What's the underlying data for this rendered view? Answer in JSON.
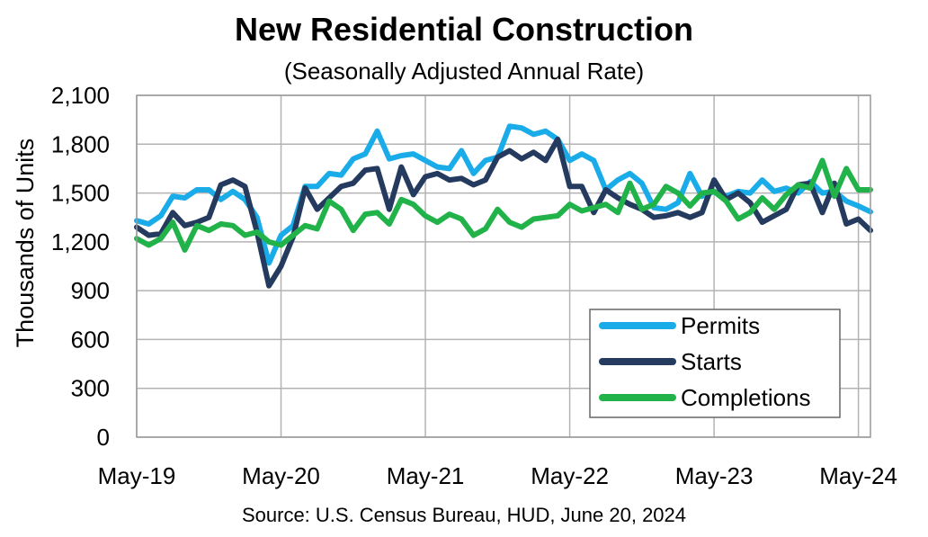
{
  "chart_data": {
    "type": "line",
    "title": "New Residential Construction",
    "subtitle": "(Seasonally Adjusted Annual Rate)",
    "source": "Source:  U.S. Census Bureau, HUD, June 20, 2024",
    "ylabel": "Thousands of Units",
    "xlabel": "",
    "ylim": [
      0,
      2100
    ],
    "yticks": [
      "0",
      "300",
      "600",
      "900",
      "1,200",
      "1,500",
      "1,800",
      "2,100"
    ],
    "yticks_values": [
      0,
      300,
      600,
      900,
      1200,
      1500,
      1800,
      2100
    ],
    "xticks": [
      "May-19",
      "May-20",
      "May-21",
      "May-22",
      "May-23",
      "May-24"
    ],
    "xticks_index": [
      0,
      12,
      24,
      36,
      48,
      60
    ],
    "grid": true,
    "legend_position": "bottom-right",
    "series": [
      {
        "name": "Permits",
        "color": "#1aace8",
        "values": [
          1330,
          1310,
          1360,
          1480,
          1470,
          1520,
          1520,
          1460,
          1510,
          1460,
          1350,
          1070,
          1240,
          1300,
          1540,
          1540,
          1620,
          1610,
          1710,
          1740,
          1880,
          1710,
          1730,
          1740,
          1700,
          1660,
          1650,
          1760,
          1620,
          1700,
          1720,
          1910,
          1900,
          1860,
          1880,
          1830,
          1700,
          1740,
          1700,
          1520,
          1580,
          1620,
          1560,
          1410,
          1400,
          1440,
          1620,
          1480,
          1510,
          1480,
          1510,
          1500,
          1580,
          1510,
          1530,
          1500,
          1570,
          1500,
          1510,
          1450,
          1420,
          1385
        ]
      },
      {
        "name": "Starts",
        "color": "#243a5e",
        "values": [
          1290,
          1240,
          1250,
          1380,
          1300,
          1320,
          1350,
          1550,
          1580,
          1540,
          1260,
          930,
          1050,
          1230,
          1530,
          1400,
          1470,
          1540,
          1560,
          1640,
          1650,
          1400,
          1660,
          1490,
          1600,
          1620,
          1580,
          1590,
          1550,
          1580,
          1720,
          1760,
          1710,
          1750,
          1700,
          1830,
          1540,
          1540,
          1380,
          1520,
          1470,
          1430,
          1400,
          1350,
          1360,
          1380,
          1350,
          1380,
          1580,
          1460,
          1500,
          1440,
          1320,
          1360,
          1400,
          1550,
          1560,
          1380,
          1560,
          1310,
          1340,
          1270
        ]
      },
      {
        "name": "Completions",
        "color": "#21b34a",
        "values": [
          1220,
          1180,
          1220,
          1320,
          1150,
          1300,
          1270,
          1310,
          1300,
          1240,
          1260,
          1200,
          1180,
          1240,
          1300,
          1280,
          1450,
          1400,
          1270,
          1370,
          1380,
          1310,
          1460,
          1430,
          1360,
          1320,
          1370,
          1340,
          1240,
          1280,
          1400,
          1320,
          1290,
          1340,
          1350,
          1360,
          1430,
          1390,
          1410,
          1430,
          1380,
          1560,
          1400,
          1430,
          1540,
          1500,
          1420,
          1500,
          1510,
          1450,
          1340,
          1380,
          1470,
          1400,
          1490,
          1550,
          1530,
          1700,
          1480,
          1650,
          1520,
          1520
        ]
      }
    ]
  }
}
